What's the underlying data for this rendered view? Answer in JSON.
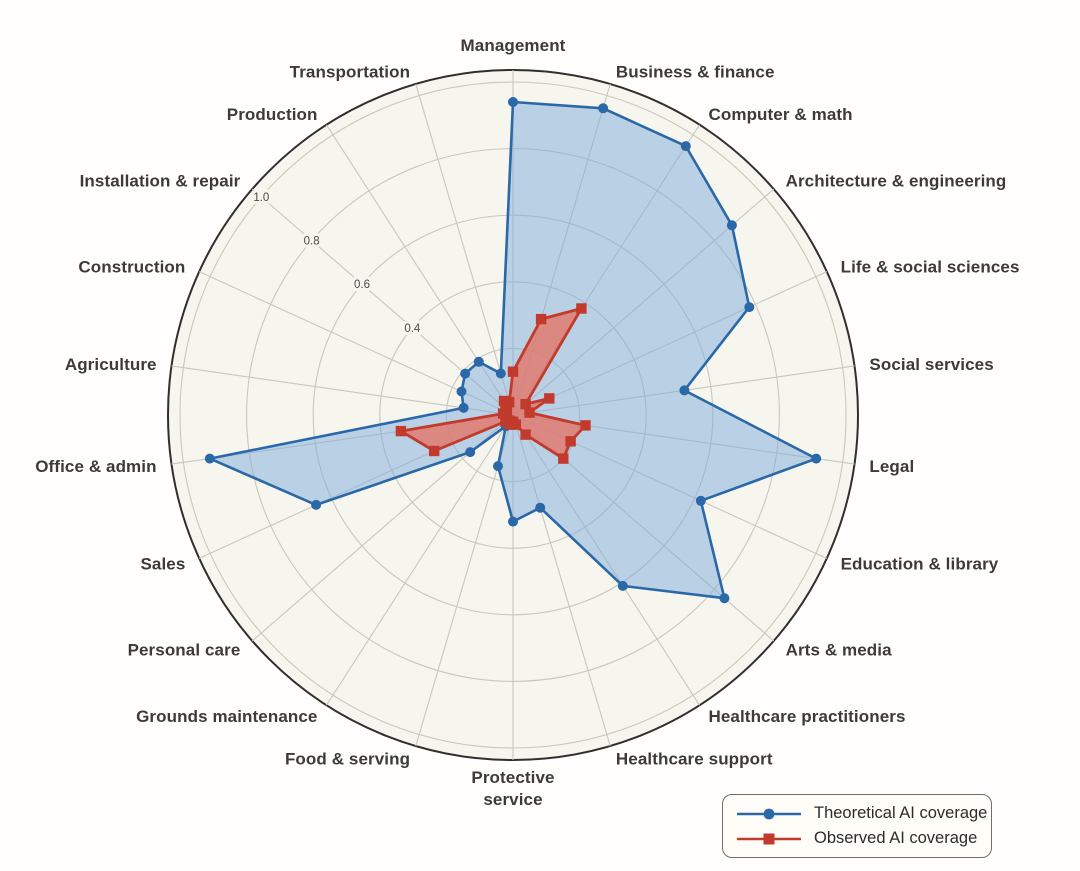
{
  "chart_data": {
    "type": "radar",
    "title": "",
    "categories": [
      "Management",
      "Business & finance",
      "Computer & math",
      "Architecture & engineering",
      "Life & social sciences",
      "Social services",
      "Legal",
      "Education & library",
      "Arts & media",
      "Healthcare practitioners",
      "Healthcare support",
      "Protective\nservice",
      "Food & serving",
      "Grounds maintenance",
      "Personal care",
      "Sales",
      "Office & admin",
      "Agriculture",
      "Construction",
      "Installation & repair",
      "Production",
      "Transportation"
    ],
    "series": [
      {
        "name": "Theoretical AI coverage",
        "marker": "circle",
        "line_color": "#2a68a8",
        "fill_color": "#7dabdb",
        "fill_opacity": 0.5,
        "values": [
          0.94,
          0.96,
          0.96,
          0.87,
          0.78,
          0.52,
          0.92,
          0.62,
          0.84,
          0.61,
          0.29,
          0.32,
          0.16,
          0.04,
          0.17,
          0.65,
          0.92,
          0.15,
          0.17,
          0.19,
          0.19,
          0.13
        ]
      },
      {
        "name": "Observed AI coverage",
        "marker": "square",
        "line_color": "#c23a2b",
        "fill_color": "#e4766a",
        "fill_opacity": 0.8,
        "values": [
          0.13,
          0.3,
          0.38,
          0.05,
          0.12,
          0.05,
          0.22,
          0.19,
          0.2,
          0.07,
          0.03,
          0.02,
          0.03,
          0.02,
          0.03,
          0.26,
          0.34,
          0.03,
          0.02,
          0.03,
          0.05,
          0.04
        ]
      }
    ],
    "rings": [
      0.2,
      0.4,
      0.6,
      0.8,
      1.0
    ],
    "radial_tick_labels": [
      "1.0",
      "0.8",
      "0.6",
      "0.4"
    ],
    "radial_tick_values": [
      1.0,
      0.8,
      0.6,
      0.4
    ],
    "rmax": 1.0,
    "angle_start": "top",
    "direction": "clockwise",
    "grid": true,
    "legend_position": "bottom-right"
  },
  "colors": {
    "page_background": "#fffefc",
    "plot_background": "#f6f5ee",
    "grid_line": "#c9c8be",
    "outer_circle": "#2f2f2f",
    "category_label": "#3b3b3b",
    "tick_label": "#4a4a4a",
    "legend_border": "#6f6f6f",
    "legend_background": "#fffdf7",
    "legend_text": "#2c2c2c"
  }
}
